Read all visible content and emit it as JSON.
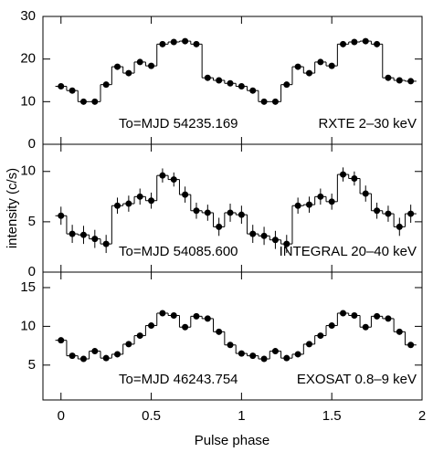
{
  "chart_data": [
    {
      "type": "step",
      "ylabel": "intensity (c/s)",
      "annotations": [
        "To=MJD 54235.169",
        "RXTE 2–30 keV"
      ],
      "x": [
        0,
        0.0625,
        0.125,
        0.1875,
        0.25,
        0.3125,
        0.375,
        0.4375,
        0.5,
        0.5625,
        0.625,
        0.6875,
        0.75,
        0.8125,
        0.875,
        0.9375,
        1,
        1.0625,
        1.125,
        1.1875,
        1.25,
        1.3125,
        1.375,
        1.4375,
        1.5,
        1.5625,
        1.625,
        1.6875,
        1.75,
        1.8125,
        1.875,
        1.9375
      ],
      "values": [
        13.6,
        12.6,
        10,
        10,
        14,
        18.2,
        16.7,
        19.3,
        18.4,
        23.5,
        24,
        24.2,
        23.5,
        15.6,
        15,
        14.3,
        13.6,
        12.6,
        10,
        10,
        14,
        18.2,
        16.7,
        19.3,
        18.4,
        23.5,
        24,
        24.2,
        23.5,
        15.6,
        15,
        14.8
      ],
      "xlim": [
        -0.1,
        2.0
      ],
      "ylim": [
        0,
        30
      ],
      "yticks": [
        0,
        10,
        20,
        30
      ],
      "xticks": [
        0,
        0.5,
        1,
        1.5,
        2
      ],
      "color": "#000000"
    },
    {
      "type": "step",
      "annotations": [
        "To=MJD 54085.600",
        "INTEGRAL 20–40 keV"
      ],
      "x": [
        0,
        0.0625,
        0.125,
        0.1875,
        0.25,
        0.3125,
        0.375,
        0.4375,
        0.5,
        0.5625,
        0.625,
        0.6875,
        0.75,
        0.8125,
        0.875,
        0.9375,
        1,
        1.0625,
        1.125,
        1.1875,
        1.25,
        1.3125,
        1.375,
        1.4375,
        1.5,
        1.5625,
        1.625,
        1.6875,
        1.75,
        1.8125,
        1.875,
        1.9375
      ],
      "values": [
        5.6,
        3.8,
        3.7,
        3.3,
        2.8,
        6.6,
        6.8,
        7.5,
        7.1,
        9.6,
        9.2,
        7.7,
        6.1,
        5.9,
        4.5,
        5.9,
        5.7,
        3.8,
        3.6,
        3.2,
        2.8,
        6.6,
        6.7,
        7.5,
        7.0,
        9.7,
        9.3,
        7.8,
        6.1,
        5.8,
        4.5,
        5.8
      ],
      "errors": [
        0.9,
        0.9,
        0.9,
        0.9,
        0.9,
        0.8,
        0.8,
        0.8,
        0.8,
        0.7,
        0.7,
        0.8,
        0.8,
        0.8,
        0.9,
        0.9,
        0.9,
        0.9,
        0.9,
        0.9,
        0.9,
        0.8,
        0.8,
        0.8,
        0.8,
        0.7,
        0.7,
        0.8,
        0.8,
        0.8,
        0.9,
        0.9
      ],
      "xlim": [
        -0.1,
        2.0
      ],
      "ylim": [
        0,
        12.7
      ],
      "yticks": [
        0,
        5,
        10
      ],
      "xticks": [
        0,
        0.5,
        1,
        1.5,
        2
      ],
      "color": "#000000"
    },
    {
      "type": "step",
      "xlabel": "Pulse phase",
      "annotations": [
        "To=MJD 46243.754",
        "EXOSAT 0.8–9 keV"
      ],
      "x": [
        0,
        0.0625,
        0.125,
        0.1875,
        0.25,
        0.3125,
        0.375,
        0.4375,
        0.5,
        0.5625,
        0.625,
        0.6875,
        0.75,
        0.8125,
        0.875,
        0.9375,
        1,
        1.0625,
        1.125,
        1.1875,
        1.25,
        1.3125,
        1.375,
        1.4375,
        1.5,
        1.5625,
        1.625,
        1.6875,
        1.75,
        1.8125,
        1.875,
        1.9375
      ],
      "values": [
        8.2,
        6.2,
        5.8,
        6.8,
        5.9,
        6.4,
        7.7,
        8.8,
        10.1,
        11.7,
        11.4,
        9.9,
        11.3,
        11.0,
        9.3,
        7.6,
        6.5,
        6.2,
        5.8,
        6.8,
        5.9,
        6.4,
        7.7,
        8.8,
        10.1,
        11.7,
        11.4,
        9.9,
        11.3,
        11.0,
        9.3,
        7.6
      ],
      "xlim": [
        -0.1,
        2.0
      ],
      "ylim": [
        0.5,
        17
      ],
      "yticks": [
        5,
        10,
        15
      ],
      "xticks": [
        0,
        0.5,
        1,
        1.5,
        2
      ],
      "show_xtick_labels": true,
      "color": "#000000"
    }
  ]
}
